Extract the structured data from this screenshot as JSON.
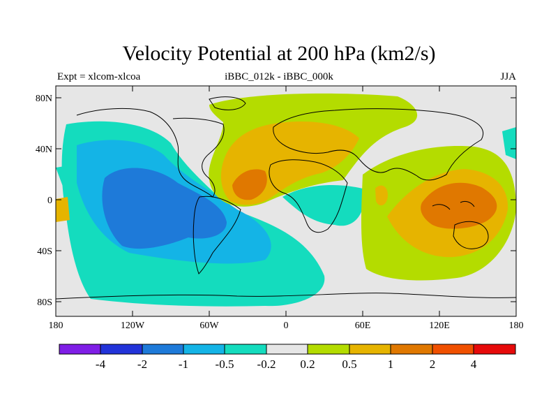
{
  "map": {
    "title": "Velocity Potential at 200 hPa (km2/s)",
    "left_label": "Expt = xlcom-xlcoa",
    "center_label": "iBBC_012k - iBBC_000k",
    "right_label": "JJA",
    "lon_ticks": [
      "180",
      "120W",
      "60W",
      "0",
      "60E",
      "120E",
      "180"
    ],
    "lat_ticks": [
      "80N",
      "40N",
      "0",
      "40S",
      "80S"
    ]
  },
  "colorbar": {
    "colors": [
      "#7f1ee6",
      "#2233d9",
      "#1e7ad9",
      "#14b4e6",
      "#14dcbe",
      "#e6e6e6",
      "#b4dc00",
      "#e6b400",
      "#e07800",
      "#f05000",
      "#e60a0a"
    ],
    "labels": [
      "-4",
      "-2",
      "-1",
      "-0.5",
      "-0.2",
      "0.2",
      "0.5",
      "1",
      "2",
      "4"
    ]
  }
}
